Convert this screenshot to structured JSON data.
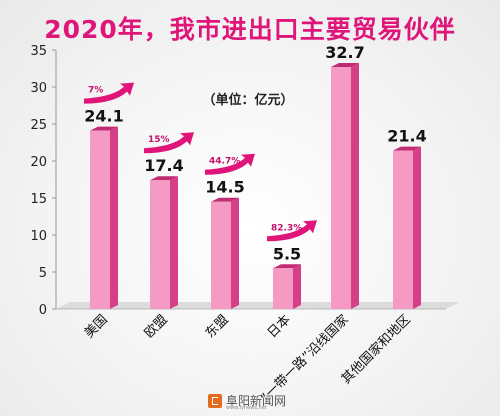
{
  "title": "2020年，我市进出口主要贸易伙伴",
  "watermark": {
    "name": "阜阳新闻网",
    "url": "www.fynews.net"
  },
  "colors": {
    "title": "#e0157a",
    "bar_front": "#f59ac3",
    "bar_side": "#d43f88",
    "bar_top": "#c02b73",
    "arrow": "#e0157a",
    "growth_text": "#c8106e"
  },
  "chart_data": {
    "type": "bar",
    "title": "2020年，我市进出口主要贸易伙伴",
    "unit_label": "（单位：亿元）",
    "categories": [
      "美国",
      "欧盟",
      "东盟",
      "日本",
      "“一带一路”沿线国家",
      "其他国家和地区"
    ],
    "values": [
      24.1,
      17.4,
      14.5,
      5.5,
      32.7,
      21.4
    ],
    "value_labels": [
      "24.1",
      "17.4",
      "14.5",
      "5.5",
      "32.7",
      "21.4"
    ],
    "growth": [
      "7%",
      "15%",
      "44.7%",
      "82.3%",
      "",
      ""
    ],
    "ylim": [
      0,
      35
    ],
    "yticks": [
      0,
      5,
      10,
      15,
      20,
      25,
      30,
      35
    ],
    "grid": false,
    "legend": "none"
  }
}
